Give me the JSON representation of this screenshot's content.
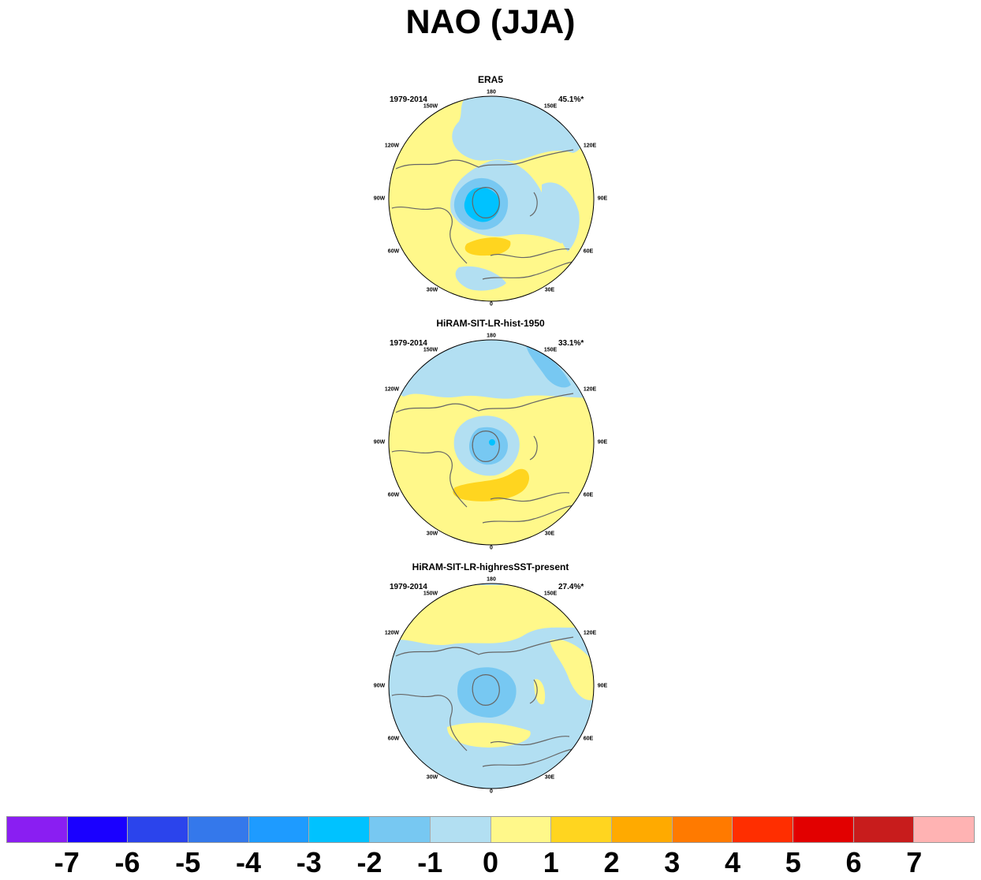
{
  "title": "NAO (JJA)",
  "panels": [
    {
      "title": "ERA5",
      "period": "1979-2014",
      "variance": "45.1%*"
    },
    {
      "title": "HiRAM-SIT-LR-hist-1950",
      "period": "1979-2014",
      "variance": "33.1%*"
    },
    {
      "title": "HiRAM-SIT-LR-highresSST-present",
      "period": "1979-2014",
      "variance": "27.4%*"
    }
  ],
  "longitude_labels": [
    "180",
    "150E",
    "120E",
    "90E",
    "60E",
    "30E",
    "0",
    "30W",
    "60W",
    "90W",
    "120W",
    "150W"
  ],
  "colorbar": {
    "colors": [
      "#8a1ef2",
      "#1a00ff",
      "#2b44ec",
      "#3478eb",
      "#1e9bff",
      "#00c2ff",
      "#77c8f2",
      "#b2dff2",
      "#fff88a",
      "#ffd51f",
      "#ffaa00",
      "#ff7a00",
      "#ff2e00",
      "#e20000",
      "#c81c1c",
      "#ffb3b3"
    ],
    "labels": [
      "-7",
      "-6",
      "-5",
      "-4",
      "-3",
      "-2",
      "-1",
      "0",
      "1",
      "2",
      "3",
      "4",
      "5",
      "6",
      "7"
    ]
  },
  "palette": {
    "land_outline": "#666666",
    "frame": "#000000"
  }
}
